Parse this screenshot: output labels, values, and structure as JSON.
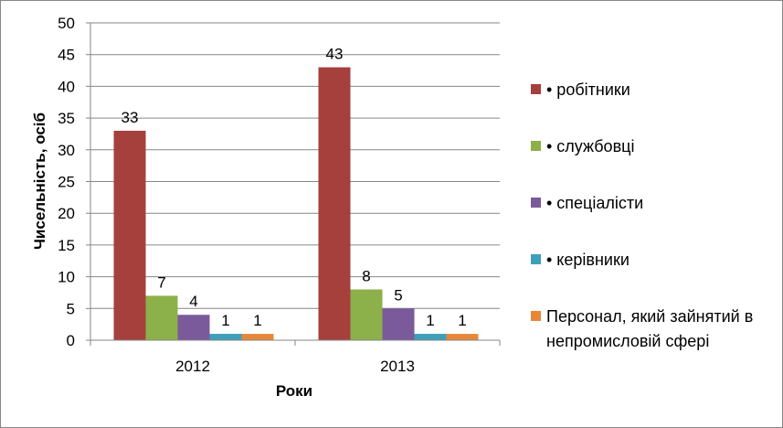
{
  "chart_data": {
    "type": "bar",
    "title": "",
    "xlabel": "Роки",
    "ylabel": "Чисельність, осіб",
    "ylim": [
      0,
      50
    ],
    "y_ticks": [
      0,
      5,
      10,
      15,
      20,
      25,
      30,
      35,
      40,
      45,
      50
    ],
    "categories": [
      "2012",
      "2013"
    ],
    "grid": true,
    "legend_position": "right",
    "series": [
      {
        "name": "робітники",
        "color": "#A5403D",
        "values": [
          33,
          43
        ],
        "legend_lines": [
          "•  робітники"
        ]
      },
      {
        "name": "службовці",
        "color": "#8CB04A",
        "values": [
          7,
          8
        ],
        "legend_lines": [
          "•  службовці"
        ]
      },
      {
        "name": "спеціалісти",
        "color": "#7A5A9B",
        "values": [
          4,
          5
        ],
        "legend_lines": [
          "•  спеціалісти"
        ]
      },
      {
        "name": "керівники",
        "color": "#3E9FBB",
        "values": [
          1,
          1
        ],
        "legend_lines": [
          "•  керівники"
        ]
      },
      {
        "name": "Персонал, який зайнятий в непромисловій сфері",
        "color": "#E8873A",
        "values": [
          1,
          1
        ],
        "legend_lines": [
          "Персонал, який зайнятий в",
          "непромисловій сфері"
        ]
      }
    ]
  }
}
